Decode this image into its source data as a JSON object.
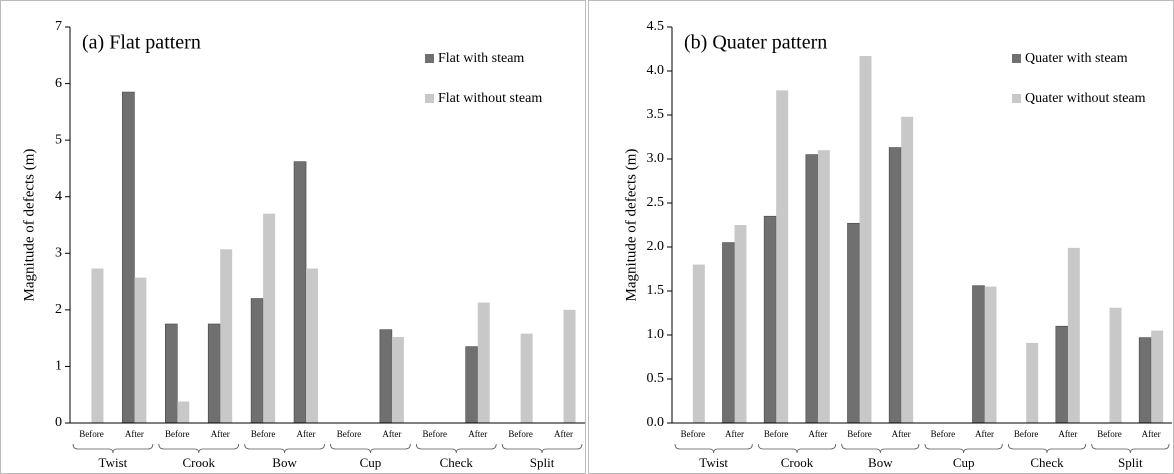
{
  "chart_data": [
    {
      "type": "bar",
      "title": "(a) Flat pattern",
      "ylabel": "Magnitude of defects (m)",
      "categories": [
        "Before",
        "After",
        "Before",
        "After",
        "Before",
        "After",
        "Before",
        "After",
        "Before",
        "After",
        "Before",
        "After"
      ],
      "groups": [
        "Twist",
        "Crook",
        "Bow",
        "Cup",
        "Check",
        "Split"
      ],
      "series": [
        {
          "name": "Flat with steam",
          "color": "#707070",
          "values": [
            0,
            5.85,
            1.75,
            1.75,
            2.2,
            4.62,
            0,
            1.65,
            0,
            1.35,
            0,
            0
          ]
        },
        {
          "name": "Flat without steam",
          "color": "#c8c8c8",
          "values": [
            2.73,
            2.57,
            0.38,
            3.07,
            3.7,
            2.73,
            0,
            1.52,
            0,
            2.13,
            1.58,
            2.0
          ]
        }
      ],
      "ylim": [
        0,
        7
      ],
      "yticks": [
        0,
        1,
        2,
        3,
        4,
        5,
        6,
        7
      ],
      "legend": "upper right"
    },
    {
      "type": "bar",
      "title": "(b) Quater pattern",
      "ylabel": "Magnitude of defects (m)",
      "categories": [
        "Before",
        "After",
        "Before",
        "After",
        "Before",
        "After",
        "Before",
        "After",
        "Before",
        "After",
        "Before",
        "After"
      ],
      "groups": [
        "Twist",
        "Crook",
        "Bow",
        "Cup",
        "Check",
        "Split"
      ],
      "series": [
        {
          "name": "Quater with steam",
          "color": "#707070",
          "values": [
            0,
            2.05,
            2.35,
            3.05,
            2.27,
            3.13,
            0,
            1.56,
            0,
            1.1,
            0,
            0.97
          ]
        },
        {
          "name": "Quater without steam",
          "color": "#c8c8c8",
          "values": [
            1.8,
            2.25,
            3.78,
            3.1,
            4.17,
            3.48,
            0,
            1.55,
            0.91,
            1.99,
            1.31,
            1.05
          ]
        }
      ],
      "ylim": [
        0,
        4.5
      ],
      "yticks": [
        {
          "value": 0,
          "label": "0.0"
        },
        0.5,
        {
          "value": 1,
          "label": "1.0"
        },
        1.5,
        {
          "value": 2,
          "label": "2.0"
        },
        2.5,
        {
          "value": 3,
          "label": "3.0"
        },
        3.5,
        {
          "value": 4,
          "label": "4.0"
        },
        4.5
      ],
      "legend": "upper right"
    }
  ]
}
